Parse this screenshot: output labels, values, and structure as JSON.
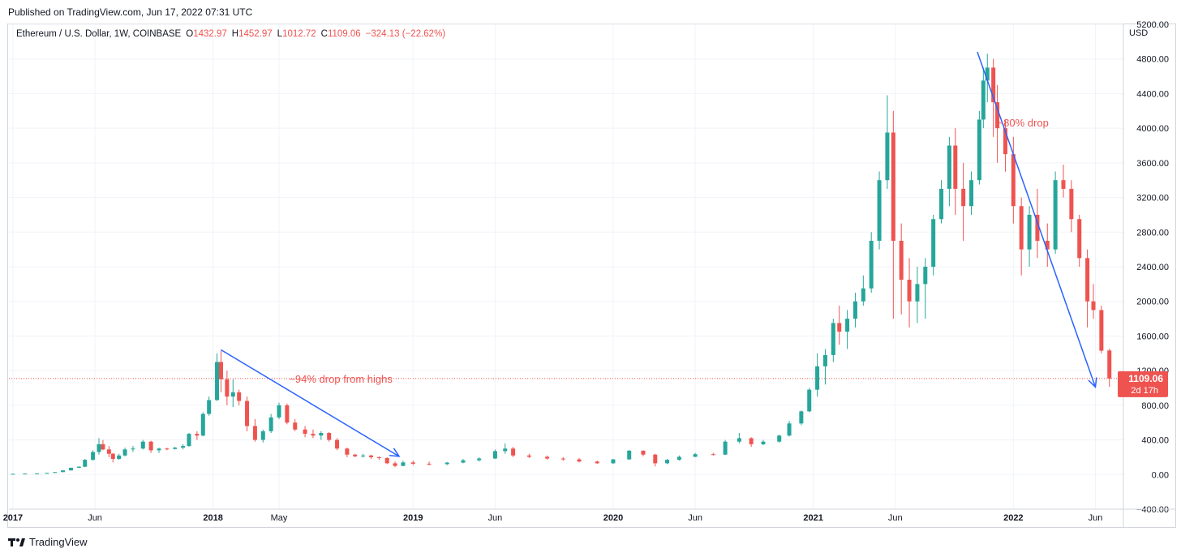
{
  "header": {
    "published": "Published on TradingView.com, Jun 17, 2022 07:31 UTC"
  },
  "legend": {
    "symbol": "Ethereum / U.S. Dollar, 1W, COINBASE",
    "o_label": "O",
    "o_value": "1432.97",
    "h_label": "H",
    "h_value": "1452.97",
    "l_label": "L",
    "l_value": "1012.72",
    "c_label": "C",
    "c_value": "1109.06",
    "change": "−324.13 (−22.62%)"
  },
  "footer": {
    "brand": "TradingView"
  },
  "colors": {
    "up": "#26a69a",
    "down": "#ef5350",
    "annotation": "#2962ff",
    "grid": "#f0f3fa"
  },
  "chart_data": {
    "type": "candlestick",
    "title": "Ethereum / U.S. Dollar, 1W, COINBASE",
    "currency_label": "USD",
    "y_range": [
      -400,
      5200
    ],
    "y_ticks": [
      -400,
      0,
      400,
      800,
      1200,
      1600,
      2000,
      2400,
      2800,
      3200,
      3600,
      4000,
      4400,
      4800,
      5200
    ],
    "y_tick_labels": [
      "−400.00",
      "0.00",
      "400.00",
      "800.00",
      "1200.00",
      "1600.00",
      "2000.00",
      "2400.00",
      "2800.00",
      "3200.00",
      "3600.00",
      "4000.00",
      "4400.00",
      "4800.00",
      "5200.00"
    ],
    "x_range": [
      2016.98,
      2022.55
    ],
    "x_ticks": [
      {
        "t": 2017.0,
        "label": "2017"
      },
      {
        "t": 2017.41,
        "label": "Jun"
      },
      {
        "t": 2018.0,
        "label": "2018"
      },
      {
        "t": 2018.33,
        "label": "May"
      },
      {
        "t": 2019.0,
        "label": "2019"
      },
      {
        "t": 2019.41,
        "label": "Jun"
      },
      {
        "t": 2020.0,
        "label": "2020"
      },
      {
        "t": 2020.41,
        "label": "Jun"
      },
      {
        "t": 2021.0,
        "label": "2021"
      },
      {
        "t": 2021.41,
        "label": "Jun"
      },
      {
        "t": 2022.0,
        "label": "2022"
      },
      {
        "t": 2022.41,
        "label": "Jun"
      }
    ],
    "last_price": {
      "value": 1109.06,
      "label": "1109.06",
      "countdown": "2d 17h"
    },
    "annotations": [
      {
        "text": "~94% drop from highs",
        "at": [
          2018.38,
          1060
        ]
      },
      {
        "text": "~80% drop",
        "at": [
          2021.92,
          4020
        ]
      }
    ],
    "trend_arrows": [
      {
        "from": [
          2018.04,
          1440
        ],
        "to": [
          2018.93,
          210
        ]
      },
      {
        "from": [
          2021.82,
          4880
        ],
        "to": [
          2022.41,
          1010
        ]
      }
    ],
    "candles": [
      [
        2017.0,
        8,
        8,
        8,
        8
      ],
      [
        2017.06,
        10,
        11,
        10,
        11
      ],
      [
        2017.12,
        12,
        13,
        11,
        13
      ],
      [
        2017.17,
        15,
        20,
        15,
        19
      ],
      [
        2017.21,
        19,
        30,
        18,
        28
      ],
      [
        2017.25,
        28,
        50,
        28,
        48
      ],
      [
        2017.29,
        48,
        80,
        45,
        78
      ],
      [
        2017.33,
        78,
        95,
        75,
        90
      ],
      [
        2017.36,
        90,
        180,
        85,
        170
      ],
      [
        2017.4,
        170,
        280,
        160,
        260
      ],
      [
        2017.43,
        260,
        420,
        230,
        350
      ],
      [
        2017.45,
        350,
        400,
        280,
        290
      ],
      [
        2017.48,
        290,
        330,
        200,
        240
      ],
      [
        2017.5,
        240,
        250,
        140,
        180
      ],
      [
        2017.53,
        180,
        240,
        170,
        220
      ],
      [
        2017.56,
        220,
        310,
        210,
        290
      ],
      [
        2017.6,
        290,
        330,
        260,
        300
      ],
      [
        2017.65,
        300,
        400,
        290,
        380
      ],
      [
        2017.69,
        380,
        390,
        250,
        280
      ],
      [
        2017.73,
        280,
        310,
        250,
        300
      ],
      [
        2017.77,
        300,
        310,
        280,
        295
      ],
      [
        2017.81,
        295,
        320,
        290,
        310
      ],
      [
        2017.85,
        310,
        350,
        290,
        330
      ],
      [
        2017.88,
        330,
        480,
        320,
        470
      ],
      [
        2017.92,
        470,
        500,
        400,
        450
      ],
      [
        2017.95,
        450,
        720,
        440,
        700
      ],
      [
        2017.98,
        700,
        900,
        680,
        860
      ],
      [
        2018.02,
        860,
        1400,
        850,
        1300
      ],
      [
        2018.04,
        1300,
        1430,
        950,
        1100
      ],
      [
        2018.07,
        1100,
        1200,
        800,
        900
      ],
      [
        2018.1,
        900,
        1100,
        780,
        950
      ],
      [
        2018.13,
        950,
        980,
        800,
        850
      ],
      [
        2018.17,
        850,
        900,
        500,
        560
      ],
      [
        2018.21,
        560,
        640,
        380,
        400
      ],
      [
        2018.25,
        400,
        520,
        370,
        500
      ],
      [
        2018.29,
        500,
        700,
        480,
        660
      ],
      [
        2018.33,
        660,
        830,
        640,
        800
      ],
      [
        2018.37,
        800,
        820,
        580,
        600
      ],
      [
        2018.41,
        600,
        640,
        500,
        520
      ],
      [
        2018.46,
        520,
        560,
        430,
        470
      ],
      [
        2018.5,
        470,
        520,
        420,
        450
      ],
      [
        2018.54,
        450,
        500,
        400,
        480
      ],
      [
        2018.58,
        480,
        490,
        380,
        400
      ],
      [
        2018.62,
        400,
        420,
        280,
        300
      ],
      [
        2018.67,
        300,
        310,
        200,
        230
      ],
      [
        2018.71,
        230,
        240,
        200,
        210
      ],
      [
        2018.75,
        210,
        240,
        195,
        220
      ],
      [
        2018.79,
        220,
        230,
        180,
        200
      ],
      [
        2018.83,
        200,
        210,
        170,
        190
      ],
      [
        2018.87,
        190,
        200,
        120,
        130
      ],
      [
        2018.91,
        130,
        150,
        85,
        100
      ],
      [
        2018.95,
        100,
        160,
        95,
        140
      ],
      [
        2019.0,
        140,
        160,
        110,
        125
      ],
      [
        2019.08,
        125,
        150,
        105,
        120
      ],
      [
        2019.17,
        120,
        145,
        110,
        138
      ],
      [
        2019.25,
        138,
        180,
        130,
        165
      ],
      [
        2019.33,
        165,
        200,
        150,
        185
      ],
      [
        2019.41,
        185,
        290,
        180,
        270
      ],
      [
        2019.46,
        270,
        360,
        240,
        300
      ],
      [
        2019.5,
        300,
        320,
        200,
        220
      ],
      [
        2019.58,
        220,
        240,
        190,
        205
      ],
      [
        2019.67,
        205,
        220,
        170,
        185
      ],
      [
        2019.75,
        185,
        200,
        160,
        175
      ],
      [
        2019.83,
        175,
        190,
        140,
        150
      ],
      [
        2019.92,
        150,
        160,
        125,
        130
      ],
      [
        2020.0,
        130,
        180,
        125,
        175
      ],
      [
        2020.08,
        175,
        285,
        170,
        275
      ],
      [
        2020.15,
        275,
        280,
        210,
        230
      ],
      [
        2020.21,
        230,
        240,
        95,
        130
      ],
      [
        2020.27,
        130,
        180,
        120,
        170
      ],
      [
        2020.33,
        170,
        220,
        160,
        205
      ],
      [
        2020.41,
        205,
        250,
        200,
        235
      ],
      [
        2020.5,
        235,
        250,
        220,
        230
      ],
      [
        2020.56,
        230,
        400,
        225,
        380
      ],
      [
        2020.63,
        380,
        480,
        360,
        420
      ],
      [
        2020.69,
        420,
        430,
        320,
        350
      ],
      [
        2020.75,
        350,
        400,
        340,
        380
      ],
      [
        2020.83,
        380,
        460,
        370,
        450
      ],
      [
        2020.88,
        450,
        620,
        440,
        590
      ],
      [
        2020.94,
        590,
        740,
        570,
        730
      ],
      [
        2020.98,
        730,
        1000,
        720,
        980
      ],
      [
        2021.02,
        980,
        1400,
        900,
        1250
      ],
      [
        2021.06,
        1250,
        1450,
        1040,
        1380
      ],
      [
        2021.1,
        1380,
        1800,
        1300,
        1750
      ],
      [
        2021.13,
        1750,
        1950,
        1500,
        1650
      ],
      [
        2021.17,
        1650,
        1900,
        1450,
        1800
      ],
      [
        2021.21,
        1800,
        2100,
        1700,
        2000
      ],
      [
        2021.25,
        2000,
        2300,
        1950,
        2150
      ],
      [
        2021.29,
        2150,
        2800,
        2100,
        2700
      ],
      [
        2021.33,
        2700,
        3500,
        2600,
        3400
      ],
      [
        2021.37,
        3400,
        4380,
        3300,
        3950
      ],
      [
        2021.4,
        3950,
        4200,
        1800,
        2700
      ],
      [
        2021.44,
        2700,
        2900,
        1850,
        2250
      ],
      [
        2021.48,
        2250,
        2500,
        1700,
        2000
      ],
      [
        2021.52,
        2000,
        2400,
        1750,
        2200
      ],
      [
        2021.56,
        2200,
        2500,
        1800,
        2400
      ],
      [
        2021.6,
        2400,
        3000,
        2300,
        2950
      ],
      [
        2021.64,
        2950,
        3400,
        2900,
        3300
      ],
      [
        2021.68,
        3300,
        3900,
        3100,
        3800
      ],
      [
        2021.71,
        3800,
        4000,
        3000,
        3300
      ],
      [
        2021.75,
        3300,
        3600,
        2700,
        3100
      ],
      [
        2021.79,
        3100,
        3500,
        3000,
        3400
      ],
      [
        2021.83,
        3400,
        4200,
        3350,
        4100
      ],
      [
        2021.85,
        4100,
        4700,
        4000,
        4550
      ],
      [
        2021.87,
        4550,
        4860,
        4300,
        4700
      ],
      [
        2021.9,
        4700,
        4800,
        3900,
        4300
      ],
      [
        2021.92,
        4300,
        4500,
        3600,
        4000
      ],
      [
        2021.96,
        4000,
        4100,
        3500,
        3700
      ],
      [
        2022.0,
        3700,
        3900,
        2900,
        3100
      ],
      [
        2022.04,
        3100,
        3200,
        2300,
        2600
      ],
      [
        2022.08,
        2600,
        3100,
        2400,
        3000
      ],
      [
        2022.12,
        3000,
        3300,
        2500,
        2700
      ],
      [
        2022.17,
        2700,
        2900,
        2400,
        2600
      ],
      [
        2022.21,
        2600,
        3500,
        2550,
        3400
      ],
      [
        2022.25,
        3400,
        3580,
        3200,
        3300
      ],
      [
        2022.29,
        3300,
        3400,
        2800,
        2950
      ],
      [
        2022.33,
        2950,
        3000,
        2400,
        2500
      ],
      [
        2022.37,
        2500,
        2600,
        1700,
        2000
      ],
      [
        2022.4,
        2000,
        2200,
        1800,
        1900
      ],
      [
        2022.44,
        1900,
        1950,
        1400,
        1430
      ],
      [
        2022.48,
        1432.97,
        1452.97,
        1012.72,
        1109.06
      ]
    ]
  }
}
